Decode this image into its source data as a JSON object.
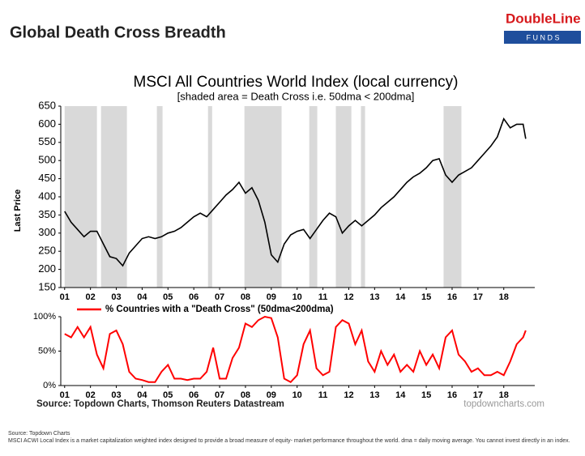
{
  "header": {
    "title": "Global Death Cross Breadth",
    "logo_top": "DoubleLine",
    "logo_bottom": "F U N D S"
  },
  "chart_data": [
    {
      "type": "line",
      "title": "MSCI All Countries World Index (local currency)",
      "subtitle": "[shaded area = Death Cross i.e. 50dma < 200dma]",
      "y_label": "Last Price",
      "x": [
        1,
        1.25,
        1.5,
        1.75,
        2,
        2.25,
        2.5,
        2.75,
        3,
        3.25,
        3.5,
        3.75,
        4,
        4.25,
        4.5,
        4.75,
        5,
        5.25,
        5.5,
        5.75,
        6,
        6.25,
        6.5,
        6.75,
        7,
        7.25,
        7.5,
        7.75,
        8,
        8.25,
        8.5,
        8.75,
        9,
        9.25,
        9.5,
        9.75,
        10,
        10.25,
        10.5,
        10.75,
        11,
        11.25,
        11.5,
        11.75,
        12,
        12.25,
        12.5,
        12.75,
        13,
        13.25,
        13.5,
        13.75,
        14,
        14.25,
        14.5,
        14.75,
        15,
        15.25,
        15.5,
        15.75,
        16,
        16.25,
        16.5,
        16.75,
        17,
        17.25,
        17.5,
        17.75,
        18,
        18.25,
        18.5,
        18.75,
        18.85
      ],
      "series": [
        {
          "name": "MSCI ACWI Local",
          "color": "#000000",
          "values": [
            360,
            330,
            310,
            290,
            305,
            305,
            270,
            235,
            230,
            210,
            245,
            265,
            285,
            290,
            285,
            290,
            300,
            305,
            315,
            330,
            345,
            355,
            345,
            365,
            385,
            405,
            420,
            440,
            410,
            425,
            390,
            330,
            240,
            220,
            270,
            295,
            305,
            310,
            285,
            310,
            335,
            355,
            345,
            300,
            320,
            335,
            320,
            335,
            350,
            370,
            385,
            400,
            420,
            440,
            455,
            465,
            480,
            500,
            505,
            460,
            440,
            460,
            470,
            480,
            500,
            520,
            540,
            565,
            615,
            590,
            600,
            600,
            560
          ]
        }
      ],
      "shaded_regions": [
        [
          1.0,
          2.25
        ],
        [
          2.41,
          3.41
        ],
        [
          4.57,
          4.79
        ],
        [
          6.55,
          6.71
        ],
        [
          7.96,
          9.4
        ],
        [
          10.47,
          10.78
        ],
        [
          11.5,
          12.1
        ],
        [
          12.47,
          12.63
        ],
        [
          15.67,
          16.36
        ]
      ],
      "shade_color": "#d9d9d9",
      "xlim": [
        0.85,
        19.2
      ],
      "xticks": [
        {
          "value": 1,
          "label": "01"
        },
        {
          "value": 2,
          "label": "02"
        },
        {
          "value": 3,
          "label": "03"
        },
        {
          "value": 4,
          "label": "04"
        },
        {
          "value": 5,
          "label": "05"
        },
        {
          "value": 6,
          "label": "06"
        },
        {
          "value": 7,
          "label": "07"
        },
        {
          "value": 8,
          "label": "08"
        },
        {
          "value": 9,
          "label": "09"
        },
        {
          "value": 10,
          "label": "10"
        },
        {
          "value": 11,
          "label": "11"
        },
        {
          "value": 12,
          "label": "12"
        },
        {
          "value": 13,
          "label": "13"
        },
        {
          "value": 14,
          "label": "14"
        },
        {
          "value": 15,
          "label": "15"
        },
        {
          "value": 16,
          "label": "16"
        },
        {
          "value": 17,
          "label": "17"
        },
        {
          "value": 18,
          "label": "18"
        }
      ],
      "ylim": [
        150,
        650
      ],
      "yticks": [
        150,
        200,
        250,
        300,
        350,
        400,
        450,
        500,
        550,
        600,
        650
      ]
    },
    {
      "type": "line",
      "x": [
        1,
        1.25,
        1.5,
        1.75,
        2,
        2.25,
        2.5,
        2.75,
        3,
        3.25,
        3.5,
        3.75,
        4,
        4.25,
        4.5,
        4.75,
        5,
        5.25,
        5.5,
        5.75,
        6,
        6.25,
        6.5,
        6.75,
        7,
        7.25,
        7.5,
        7.75,
        8,
        8.25,
        8.5,
        8.75,
        9,
        9.25,
        9.5,
        9.75,
        10,
        10.25,
        10.5,
        10.75,
        11,
        11.25,
        11.5,
        11.75,
        12,
        12.25,
        12.5,
        12.75,
        13,
        13.25,
        13.5,
        13.75,
        14,
        14.25,
        14.5,
        14.75,
        15,
        15.25,
        15.5,
        15.75,
        16,
        16.25,
        16.5,
        16.75,
        17,
        17.25,
        17.5,
        17.75,
        18,
        18.25,
        18.5,
        18.75,
        18.85
      ],
      "series": [
        {
          "name": "% Countries with a \"Death Cross\" (50dma<200dma)",
          "color": "#ff0000",
          "values": [
            75,
            70,
            85,
            70,
            85,
            45,
            25,
            75,
            80,
            60,
            20,
            10,
            8,
            5,
            5,
            20,
            30,
            10,
            10,
            8,
            10,
            10,
            20,
            55,
            10,
            10,
            40,
            55,
            90,
            85,
            95,
            100,
            98,
            70,
            10,
            5,
            15,
            60,
            80,
            25,
            15,
            20,
            85,
            95,
            90,
            60,
            80,
            35,
            20,
            50,
            30,
            45,
            20,
            30,
            20,
            50,
            30,
            45,
            25,
            70,
            80,
            45,
            35,
            20,
            25,
            15,
            15,
            20,
            15,
            35,
            60,
            70,
            80
          ]
        }
      ],
      "xlim": [
        0.85,
        19.2
      ],
      "xticks": [
        {
          "value": 1,
          "label": "01"
        },
        {
          "value": 2,
          "label": "02"
        },
        {
          "value": 3,
          "label": "03"
        },
        {
          "value": 4,
          "label": "04"
        },
        {
          "value": 5,
          "label": "05"
        },
        {
          "value": 6,
          "label": "06"
        },
        {
          "value": 7,
          "label": "07"
        },
        {
          "value": 8,
          "label": "08"
        },
        {
          "value": 9,
          "label": "09"
        },
        {
          "value": 10,
          "label": "10"
        },
        {
          "value": 11,
          "label": "11"
        },
        {
          "value": 12,
          "label": "12"
        },
        {
          "value": 13,
          "label": "13"
        },
        {
          "value": 14,
          "label": "14"
        },
        {
          "value": 15,
          "label": "15"
        },
        {
          "value": 16,
          "label": "16"
        },
        {
          "value": 17,
          "label": "17"
        },
        {
          "value": 18,
          "label": "18"
        }
      ],
      "ylim": [
        0,
        100
      ],
      "yticks": [
        {
          "value": 0,
          "label": "0%"
        },
        {
          "value": 50,
          "label": "50%"
        },
        {
          "value": 100,
          "label": "100%"
        }
      ],
      "source": "Source: Topdown Charts, Thomson Reuters Datastream",
      "credit": "topdowncharts.com"
    }
  ],
  "footer": {
    "source": "Source: Topdown Charts",
    "note": "MSCI ACWI Local Index  is a market capitalization weighted index designed to provide a broad measure of equity- market performance throughout the world. dma = daily moving average. You cannot invest directly in an index."
  }
}
